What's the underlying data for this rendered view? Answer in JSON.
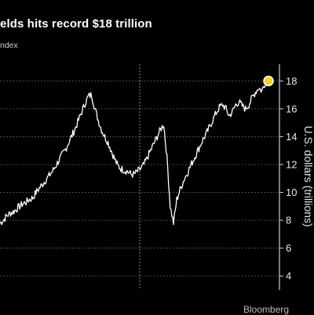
{
  "chart_data": {
    "type": "line",
    "title": "elds hits record $18 trillion",
    "subtitle": "ndex",
    "ylabel": "U.S. dollars (trillions)",
    "ylim": [
      3,
      19.2
    ],
    "yticks": [
      4,
      6,
      8,
      10,
      12,
      14,
      16,
      18
    ],
    "grid": "horizontal dashed",
    "series": [
      {
        "values": [
          7.8,
          8.0,
          8.3,
          8.5,
          8.6,
          8.8,
          9.0,
          9.2,
          9.3,
          9.5,
          9.6,
          10.0,
          10.3,
          10.6,
          10.9,
          11.2,
          11.5,
          11.9,
          12.3,
          12.7,
          13.1,
          13.6,
          14.1,
          14.6,
          15.2,
          15.8,
          16.4,
          16.9,
          17.0,
          16.0,
          15.2,
          14.5,
          14.0,
          13.6,
          13.0,
          12.4,
          11.9,
          11.7,
          11.6,
          11.5,
          11.3,
          11.3,
          11.5,
          11.7,
          12.0,
          12.5,
          13.0,
          13.5,
          14.0,
          14.5,
          14.9,
          12.5,
          9.0,
          7.8,
          9.5,
          10.2,
          10.8,
          11.3,
          11.8,
          12.3,
          12.8,
          13.3,
          13.8,
          14.2,
          14.7,
          15.2,
          15.7,
          16.1,
          16.3,
          16.0,
          15.5,
          15.8,
          16.3,
          16.5,
          16.2,
          16.0,
          16.3,
          16.8,
          17.2,
          17.5,
          17.3,
          17.9,
          18.0
        ]
      }
    ],
    "annotation": {
      "label": "record",
      "value": 18.0
    }
  },
  "footer_text": "Bloomberg"
}
